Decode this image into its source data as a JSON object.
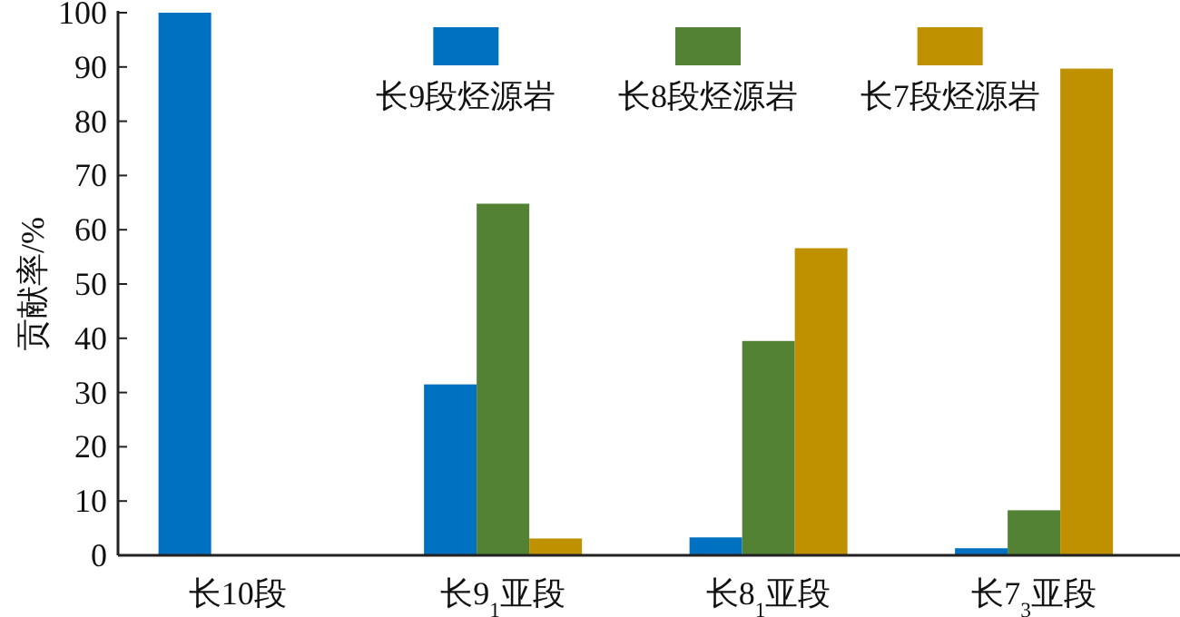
{
  "chart_data": {
    "type": "bar",
    "ylabel": "贡献率/%",
    "categories": [
      "长10段",
      "长9$_{1}$亚段",
      "长8$_{1}$亚段",
      "长7$_{3}$亚段"
    ],
    "series": [
      {
        "name": "长9段烃源岩",
        "color": "#0070c0",
        "values": [
          100,
          31.5,
          3.3,
          1.3
        ]
      },
      {
        "name": "长8段烃源岩",
        "color": "#548235",
        "values": [
          0,
          64.8,
          39.5,
          8.3
        ]
      },
      {
        "name": "长7段烃源岩",
        "color": "#bf9000",
        "values": [
          0,
          3.1,
          56.6,
          89.7
        ]
      }
    ],
    "ylim": [
      0,
      100
    ],
    "yticks": [
      0,
      10,
      20,
      30,
      40,
      50,
      60,
      70,
      80,
      90,
      100
    ],
    "legend": "top"
  }
}
